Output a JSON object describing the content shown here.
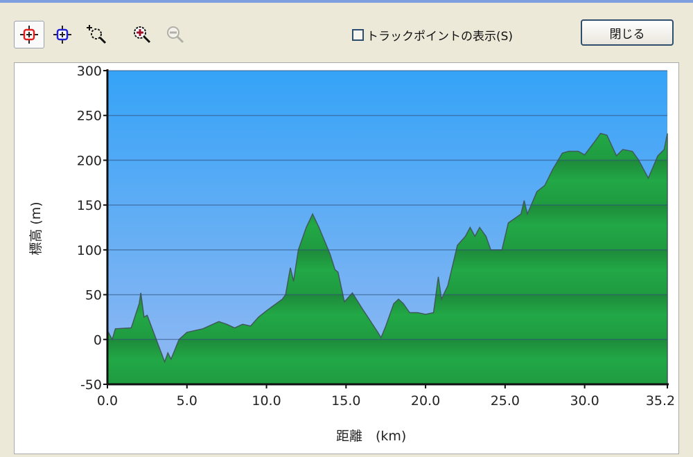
{
  "toolbar": {
    "buttons": [
      {
        "name": "red-crosshair-tool",
        "icon": "crosshair-red-icon"
      },
      {
        "name": "blue-crosshair-tool",
        "icon": "crosshair-blue-icon"
      },
      {
        "name": "zoom-area-tool",
        "icon": "zoom-area-icon"
      },
      {
        "name": "zoom-in-tool",
        "icon": "zoom-in-icon"
      },
      {
        "name": "zoom-out-tool",
        "icon": "zoom-out-icon",
        "disabled": true
      }
    ],
    "show_trackpoints_label": "トラックポイントの表示(S)",
    "show_trackpoints_checked": false,
    "close_label": "閉じる"
  },
  "colors": {
    "sky_top": "#35a3f7",
    "sky_bottom": "#93b9f2",
    "fill_green": "#22aa44",
    "grid": "#3c5a8a"
  },
  "chart_data": {
    "type": "area",
    "title": "",
    "xlabel": "距離　(km)",
    "ylabel": "標高 (m)",
    "xlim": [
      0,
      35.2
    ],
    "ylim": [
      -50,
      300
    ],
    "xticks": [
      "0.0",
      "5.0",
      "10.0",
      "15.0",
      "20.0",
      "25.0",
      "30.0",
      "35.2"
    ],
    "xtick_values": [
      0,
      5,
      10,
      15,
      20,
      25,
      30,
      35.2
    ],
    "yticks": [
      "-50",
      "0",
      "50",
      "100",
      "150",
      "200",
      "250",
      "300"
    ],
    "ytick_values": [
      -50,
      0,
      50,
      100,
      150,
      200,
      250,
      300
    ],
    "grid": true,
    "x": [
      0,
      0.3,
      0.5,
      1.5,
      2.0,
      2.1,
      2.3,
      2.5,
      3.6,
      3.8,
      4.0,
      4.5,
      5.0,
      6.0,
      7.0,
      7.5,
      8.0,
      8.5,
      9.0,
      9.5,
      10.0,
      11.0,
      11.2,
      11.5,
      11.7,
      12.0,
      12.5,
      12.9,
      13.3,
      14.0,
      14.3,
      14.5,
      14.9,
      15.4,
      16.0,
      17.0,
      17.2,
      17.5,
      18.0,
      18.3,
      18.6,
      19.0,
      19.5,
      20.0,
      20.5,
      20.8,
      21.0,
      21.4,
      22.0,
      22.5,
      22.8,
      23.1,
      23.4,
      23.8,
      24.1,
      24.8,
      25.2,
      26.0,
      26.2,
      26.4,
      27.0,
      27.5,
      28.0,
      28.6,
      29.0,
      29.6,
      30.0,
      30.6,
      31.0,
      31.4,
      32.0,
      32.4,
      33.0,
      33.4,
      34.0,
      34.6,
      35.0,
      35.2
    ],
    "y": [
      10,
      0,
      12,
      13,
      40,
      52,
      25,
      27,
      -25,
      -15,
      -22,
      0,
      8,
      12,
      20,
      17,
      13,
      17,
      15,
      25,
      32,
      45,
      50,
      80,
      65,
      100,
      125,
      140,
      125,
      95,
      78,
      75,
      42,
      52,
      35,
      8,
      2,
      15,
      40,
      45,
      40,
      30,
      30,
      28,
      30,
      70,
      45,
      60,
      105,
      115,
      125,
      115,
      125,
      115,
      100,
      100,
      130,
      140,
      155,
      140,
      165,
      172,
      190,
      208,
      210,
      210,
      206,
      220,
      230,
      228,
      205,
      212,
      210,
      200,
      180,
      205,
      212,
      230
    ]
  }
}
